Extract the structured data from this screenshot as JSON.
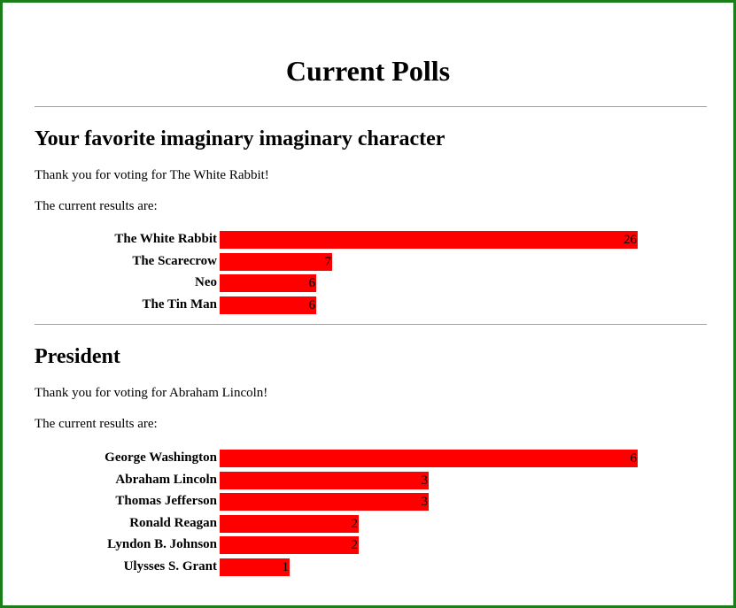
{
  "page": {
    "title": "Current Polls",
    "colors": {
      "border": "#1a7f1a",
      "bar": "#ff0000",
      "rule": "#a0a0a0"
    }
  },
  "polls": [
    {
      "title": "Your favorite imaginary imaginary character",
      "thanks": "Thank you for voting for The White Rabbit!",
      "results_label": "The current results are:",
      "max_votes": 26,
      "options": [
        {
          "label": "The White Rabbit",
          "votes": 26
        },
        {
          "label": "The Scarecrow",
          "votes": 7
        },
        {
          "label": "Neo",
          "votes": 6
        },
        {
          "label": "The Tin Man",
          "votes": 6
        }
      ]
    },
    {
      "title": "President",
      "thanks": "Thank you for voting for Abraham Lincoln!",
      "results_label": "The current results are:",
      "max_votes": 6,
      "options": [
        {
          "label": "George Washington",
          "votes": 6
        },
        {
          "label": "Abraham Lincoln",
          "votes": 3
        },
        {
          "label": "Thomas Jefferson",
          "votes": 3
        },
        {
          "label": "Ronald Reagan",
          "votes": 2
        },
        {
          "label": "Lyndon B. Johnson",
          "votes": 2
        },
        {
          "label": "Ulysses S. Grant",
          "votes": 1
        }
      ]
    }
  ]
}
